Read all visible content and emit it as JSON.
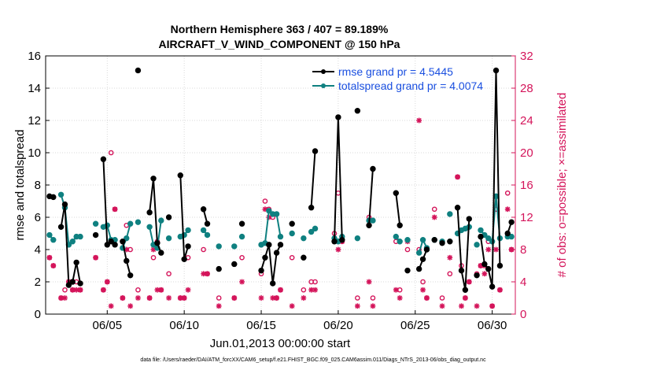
{
  "chart_data": {
    "type": "line",
    "title": "Northern Hemisphere 363 / 407 = 89.189%",
    "subtitle": "AIRCRAFT_V_WIND_COMPONENT @ 150 hPa",
    "xlabel": "Jun.01,2013 00:00:00 start",
    "ylabel": "rmse and totalspread",
    "ylabel_right": "# of obs: o=possible; ×=assimilated",
    "footer": "data file: /Users/raeder/DAI/ATM_forcXX/CAM6_setup/f.e21.FHIST_BGC.f09_025.CAM6assim.011/Diags_NTrS_2013-06/obs_diag_output.nc",
    "xlim": [
      1,
      31.5
    ],
    "ylim": [
      0,
      16
    ],
    "ylim_right": [
      0,
      32
    ],
    "x_ticks": [
      5,
      10,
      15,
      20,
      25,
      30
    ],
    "x_tick_labels": [
      "06/05",
      "06/10",
      "06/15",
      "06/20",
      "06/25",
      "06/30"
    ],
    "y_ticks": [
      0,
      2,
      4,
      6,
      8,
      10,
      12,
      14,
      16
    ],
    "y_tick_labels": [
      "0",
      "2",
      "4",
      "6",
      "8",
      "10",
      "12",
      "14",
      "16"
    ],
    "y2_ticks": [
      0,
      4,
      8,
      12,
      16,
      20,
      24,
      28,
      32
    ],
    "y2_tick_labels": [
      "0",
      "4",
      "8",
      "12",
      "16",
      "20",
      "24",
      "28",
      "32"
    ],
    "grid": true,
    "legend_position": "top-right",
    "colors": {
      "rmse": "#000000",
      "spread": "#0f8080",
      "obs": "#d4145a",
      "legend_text": "#1a4fe0"
    },
    "series": [
      {
        "name": "rmse grand pr = 4.5445",
        "key": "rmse",
        "segments": [
          {
            "x": [
              1.25,
              1.5
            ],
            "y": [
              7.3,
              7.25
            ]
          },
          {
            "x": [
              2.0,
              2.25,
              2.5,
              2.75,
              3.0,
              3.25
            ],
            "y": [
              5.4,
              6.8,
              1.8,
              2.0,
              3.2,
              1.9
            ]
          },
          {
            "x": [
              4.25
            ],
            "y": [
              4.9
            ]
          },
          {
            "x": [
              4.75,
              5.0,
              5.25,
              5.5
            ],
            "y": [
              9.6,
              4.3,
              4.5,
              4.3
            ]
          },
          {
            "x": [
              6.0,
              6.25,
              6.5
            ],
            "y": [
              4.5,
              3.3,
              2.4
            ]
          },
          {
            "x": [
              7.0
            ],
            "y": [
              15.1
            ]
          },
          {
            "x": [
              7.75,
              8.0,
              8.25,
              8.5
            ],
            "y": [
              6.3,
              8.4,
              4.4,
              3.8
            ]
          },
          {
            "x": [
              9.0
            ],
            "y": [
              6.0
            ]
          },
          {
            "x": [
              9.75,
              10.0,
              10.25
            ],
            "y": [
              8.6,
              3.4,
              4.2
            ]
          },
          {
            "x": [
              11.25,
              11.5
            ],
            "y": [
              6.5,
              5.6
            ]
          },
          {
            "x": [
              12.25
            ],
            "y": [
              2.8
            ]
          },
          {
            "x": [
              13.25
            ],
            "y": [
              3.1
            ]
          },
          {
            "x": [
              13.75
            ],
            "y": [
              5.6
            ]
          },
          {
            "x": [
              15.0,
              15.25,
              15.5,
              15.75,
              16.0,
              16.25
            ],
            "y": [
              2.7,
              3.5,
              4.3,
              1.9,
              3.8,
              4.3
            ]
          },
          {
            "x": [
              17.0
            ],
            "y": [
              5.6
            ]
          },
          {
            "x": [
              17.75
            ],
            "y": [
              3.5
            ]
          },
          {
            "x": [
              18.25,
              18.5
            ],
            "y": [
              6.6,
              10.1
            ]
          },
          {
            "x": [
              19.75,
              20.0,
              20.25
            ],
            "y": [
              4.5,
              12.2,
              4.6
            ]
          },
          {
            "x": [
              21.25
            ],
            "y": [
              12.6
            ]
          },
          {
            "x": [
              22.0,
              22.25
            ],
            "y": [
              5.5,
              9.0
            ]
          },
          {
            "x": [
              23.75,
              24.0
            ],
            "y": [
              7.5,
              5.5
            ]
          },
          {
            "x": [
              24.5
            ],
            "y": [
              2.7
            ]
          },
          {
            "x": [
              25.25,
              25.5,
              25.75
            ],
            "y": [
              2.8,
              3.4,
              4.0
            ]
          },
          {
            "x": [
              26.25
            ],
            "y": [
              4.6
            ]
          },
          {
            "x": [
              26.75
            ],
            "y": [
              4.4
            ]
          },
          {
            "x": [
              27.25
            ],
            "y": [
              4.5
            ]
          },
          {
            "x": [
              27.75,
              28.0,
              28.25,
              28.5
            ],
            "y": [
              6.6,
              2.7,
              1.5,
              5.9
            ]
          },
          {
            "x": [
              29.0
            ],
            "y": [
              2.4
            ]
          },
          {
            "x": [
              29.25,
              29.5,
              29.75,
              30.0,
              30.25,
              30.5
            ],
            "y": [
              4.8,
              3.1,
              2.8,
              1.7,
              15.1,
              3.0
            ]
          },
          {
            "x": [
              31.0,
              31.25
            ],
            "y": [
              5.0,
              5.7
            ]
          }
        ]
      },
      {
        "name": "totalspread grand pr = 4.0074",
        "key": "spread",
        "segments": [
          {
            "x": [
              1.25,
              1.5
            ],
            "y": [
              4.9,
              4.6
            ]
          },
          {
            "x": [
              2.0,
              2.25,
              2.5,
              2.75,
              3.0,
              3.25
            ],
            "y": [
              7.4,
              6.6,
              4.3,
              4.5,
              4.8,
              4.8
            ]
          },
          {
            "x": [
              4.25
            ],
            "y": [
              5.6
            ]
          },
          {
            "x": [
              4.75,
              5.0,
              5.25,
              5.5
            ],
            "y": [
              5.4,
              5.5,
              4.6,
              4.6
            ]
          },
          {
            "x": [
              6.0,
              6.25,
              6.5
            ],
            "y": [
              4.1,
              4.7,
              5.6
            ]
          },
          {
            "x": [
              7.0
            ],
            "y": [
              5.7
            ]
          },
          {
            "x": [
              7.75,
              8.0,
              8.25,
              8.5
            ],
            "y": [
              5.4,
              4.3,
              4.1,
              5.8
            ]
          },
          {
            "x": [
              9.0
            ],
            "y": [
              4.7
            ]
          },
          {
            "x": [
              9.75,
              10.0,
              10.25
            ],
            "y": [
              4.8,
              4.9,
              5.2
            ]
          },
          {
            "x": [
              11.25,
              11.5
            ],
            "y": [
              5.2,
              4.9
            ]
          },
          {
            "x": [
              12.25
            ],
            "y": [
              4.2
            ]
          },
          {
            "x": [
              13.25
            ],
            "y": [
              4.2
            ]
          },
          {
            "x": [
              13.75
            ],
            "y": [
              4.8
            ]
          },
          {
            "x": [
              15.0,
              15.25,
              15.5,
              15.75,
              16.0,
              16.25
            ],
            "y": [
              4.3,
              4.4,
              6.4,
              6.2,
              6.2,
              4.8
            ]
          },
          {
            "x": [
              17.0
            ],
            "y": [
              5.0
            ]
          },
          {
            "x": [
              17.75
            ],
            "y": [
              4.7
            ]
          },
          {
            "x": [
              18.25,
              18.5
            ],
            "y": [
              5.1,
              5.3
            ]
          },
          {
            "x": [
              19.75,
              20.0,
              20.25
            ],
            "y": [
              4.7,
              4.5,
              4.8
            ]
          },
          {
            "x": [
              21.25
            ],
            "y": [
              4.7
            ]
          },
          {
            "x": [
              22.0,
              22.25
            ],
            "y": [
              5.8,
              5.8
            ]
          },
          {
            "x": [
              23.75,
              24.0
            ],
            "y": [
              4.8,
              4.5
            ]
          },
          {
            "x": [
              24.5
            ],
            "y": [
              4.6
            ]
          },
          {
            "x": [
              25.25,
              25.5,
              25.75
            ],
            "y": [
              3.8,
              4.6,
              4.1
            ]
          },
          {
            "x": [
              26.25
            ],
            "y": [
              4.6
            ]
          },
          {
            "x": [
              26.75
            ],
            "y": [
              4.5
            ]
          },
          {
            "x": [
              27.25
            ],
            "y": [
              6.2
            ]
          },
          {
            "x": [
              27.75,
              28.0,
              28.25,
              28.5
            ],
            "y": [
              5.0,
              5.2,
              5.3,
              5.4
            ]
          },
          {
            "x": [
              29.0
            ],
            "y": [
              4.3
            ]
          },
          {
            "x": [
              29.25,
              29.5,
              29.75,
              30.0,
              30.25,
              30.5
            ],
            "y": [
              5.2,
              4.9,
              4.7,
              4.5,
              7.3,
              4.7
            ]
          },
          {
            "x": [
              31.0,
              31.25
            ],
            "y": [
              4.8,
              4.8
            ]
          }
        ]
      }
    ],
    "obs_possible": {
      "x": [
        1.25,
        1.5,
        2.0,
        2.25,
        2.5,
        2.75,
        3.0,
        3.25,
        4.25,
        4.75,
        5.0,
        5.25,
        5.5,
        6.0,
        6.25,
        6.5,
        7.0,
        7.75,
        8.0,
        8.25,
        8.5,
        9.0,
        9.75,
        10.0,
        10.25,
        11.25,
        11.5,
        12.25,
        13.25,
        13.75,
        15.0,
        15.25,
        15.5,
        15.75,
        16.0,
        16.25,
        17.0,
        17.75,
        18.25,
        18.5,
        19.75,
        20.0,
        20.25,
        21.25,
        22.0,
        22.25,
        23.75,
        24.0,
        24.5,
        25.25,
        25.5,
        25.75,
        26.25,
        26.75,
        27.25,
        27.75,
        28.0,
        28.25,
        28.5,
        29.0,
        29.25,
        29.5,
        29.75,
        30.0,
        30.25,
        30.5,
        31.0,
        31.25
      ],
      "y": [
        7,
        6,
        2,
        3,
        4,
        3,
        4,
        3,
        7,
        3,
        4,
        20,
        13,
        2,
        11,
        8,
        3,
        2,
        7,
        9,
        3,
        5,
        2,
        2,
        7,
        8,
        5,
        2,
        2,
        7,
        5,
        14,
        13,
        12,
        2,
        3,
        7,
        3,
        4,
        4,
        10,
        15,
        9,
        2,
        12,
        2,
        9,
        3,
        8,
        8,
        4,
        2,
        13,
        2,
        5,
        17,
        6,
        2,
        4,
        5,
        6,
        6,
        9,
        1,
        13,
        3,
        15,
        8
      ]
    },
    "obs_assimilated": {
      "x": [
        1.25,
        1.5,
        2.0,
        2.25,
        2.5,
        2.75,
        3.0,
        3.25,
        4.25,
        4.75,
        5.0,
        5.25,
        5.5,
        6.0,
        6.25,
        6.5,
        7.0,
        7.75,
        8.0,
        8.25,
        8.5,
        9.0,
        9.75,
        10.0,
        10.25,
        11.25,
        11.5,
        12.25,
        13.25,
        13.75,
        15.0,
        15.25,
        15.5,
        15.75,
        16.0,
        16.25,
        17.0,
        17.75,
        18.25,
        18.5,
        19.75,
        20.0,
        20.25,
        21.25,
        22.0,
        22.25,
        23.75,
        24.0,
        24.5,
        25.25,
        25.5,
        25.75,
        26.25,
        26.75,
        27.25,
        27.75,
        28.0,
        28.25,
        28.5,
        29.0,
        29.25,
        29.5,
        29.75,
        30.0,
        30.25,
        30.5,
        31.0,
        31.25
      ],
      "y": [
        7,
        6,
        2,
        2,
        4,
        3,
        3,
        3,
        7,
        3,
        4,
        1,
        13,
        2,
        8,
        1,
        2,
        2,
        8,
        3,
        3,
        2,
        2,
        2,
        3,
        5,
        5,
        1,
        2,
        4,
        2,
        13,
        12,
        2,
        2,
        3,
        1,
        2,
        3,
        3,
        9,
        8,
        9,
        1,
        4,
        1,
        3,
        2,
        9,
        24,
        3,
        2,
        12,
        1,
        7,
        17,
        1,
        2,
        4,
        1,
        6,
        5,
        8,
        1,
        8,
        3,
        13,
        8
      ]
    }
  }
}
